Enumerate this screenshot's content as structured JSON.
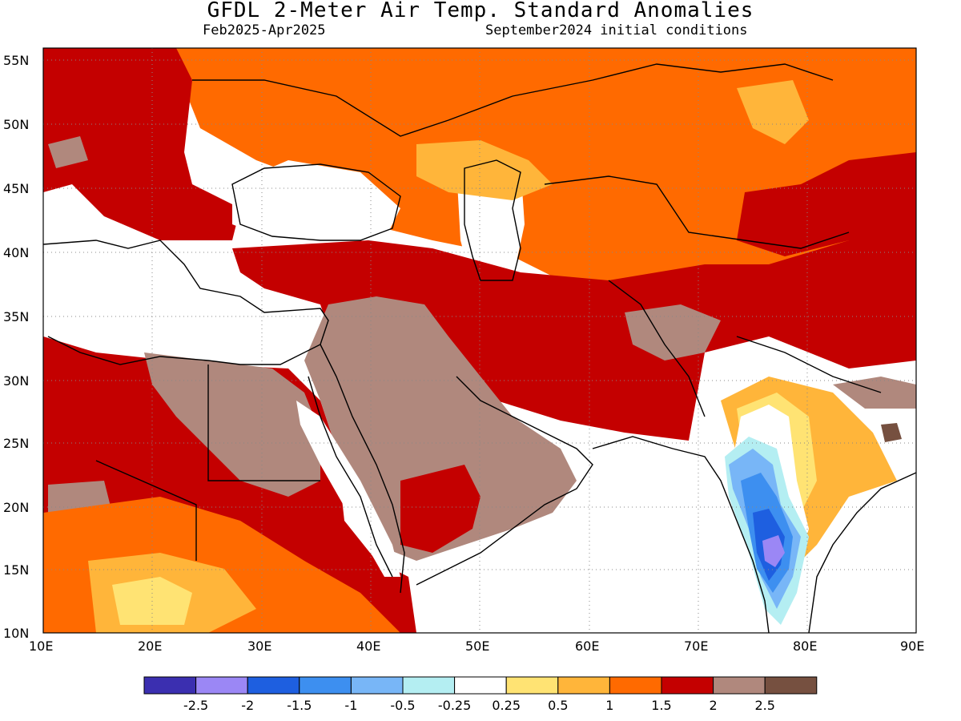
{
  "title": "GFDL 2-Meter Air Temp. Standard Anomalies",
  "subtitle_left": "Feb2025-Apr2025",
  "subtitle_right": "September2024 initial conditions",
  "map": {
    "lat_ticks": [
      "55N",
      "50N",
      "45N",
      "40N",
      "35N",
      "30N",
      "25N",
      "20N",
      "15N",
      "10N"
    ],
    "lon_ticks": [
      "10E",
      "20E",
      "30E",
      "40E",
      "50E",
      "60E",
      "70E",
      "80E",
      "90E"
    ]
  },
  "legend": {
    "colors": [
      "#3b2fb0",
      "#9b87f5",
      "#1e5fe0",
      "#3d8ff0",
      "#78b6f7",
      "#b4eef2",
      "#ffffff",
      "#ffe373",
      "#ffb53a",
      "#ff6a00",
      "#c40000",
      "#b0887d",
      "#765040"
    ],
    "labels": [
      "-2.5",
      "-2",
      "-1.5",
      "-1",
      "-0.5",
      "-0.25",
      "0.25",
      "0.5",
      "1",
      "1.5",
      "2",
      "2.5"
    ]
  },
  "palette": {
    "anom_1_1_5": "#ff6a00",
    "anom_1_5_2": "#c40000",
    "anom_2_2_5": "#b0887d",
    "anom_gt_2_5": "#765040",
    "anom_0_5_1": "#ffb53a",
    "anom_0_25_0_5": "#ffe373",
    "neutral": "#ffffff"
  }
}
